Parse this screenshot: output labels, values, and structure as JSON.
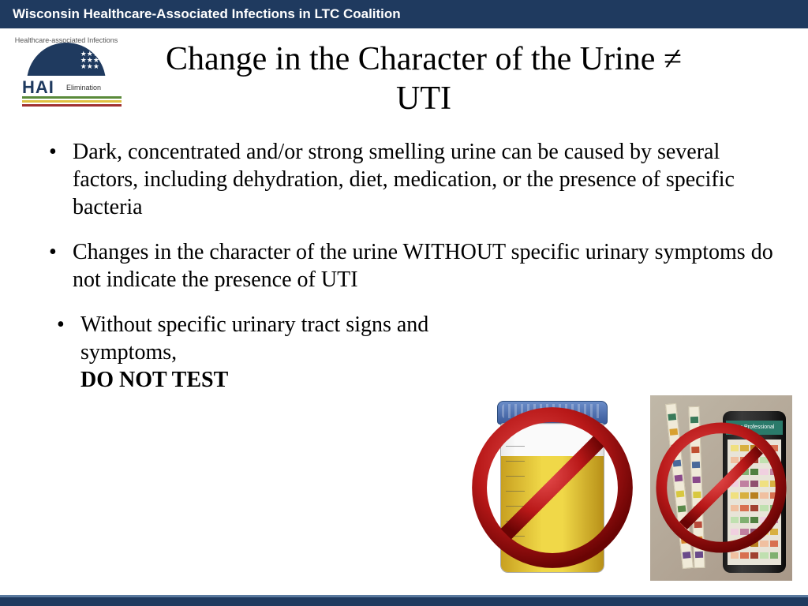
{
  "header": {
    "org": "Wisconsin Healthcare-Associated Infections in LTC Coalition"
  },
  "logo": {
    "arc_text": "Healthcare-associated Infections",
    "main": "HAI",
    "sub": "Elimination",
    "stripe_colors": [
      "#5a8a3a",
      "#e0c040",
      "#a03030"
    ]
  },
  "title": "Change in the Character of the Urine ≠ UTI",
  "bullets": [
    {
      "text": "Dark, concentrated and/or strong smelling urine can be caused by several factors, including dehydration, diet, medication, or the presence of specific bacteria"
    },
    {
      "text": "Changes in the character of the urine WITHOUT specific urinary symptoms do not indicate the presence of UTI"
    },
    {
      "indent": true,
      "text_pre": "Without specific urinary tract signs and symptoms, ",
      "text_bold": "DO NOT TEST"
    }
  ],
  "images": {
    "urine_cup": {
      "lid_color": "#3a5a9a",
      "liquid_color": "#e8c830",
      "no_symbol_size": 210,
      "no_symbol_color_outer": "#7a0808",
      "no_symbol_color_inner": "#d82828"
    },
    "test_strips": {
      "bg": "#b0a090",
      "bottle_label": "For Professional",
      "strip_pad_colors": [
        "#3a7a5a",
        "#d8a030",
        "#c05030",
        "#4a6a9a",
        "#8a4a8a",
        "#d8c840",
        "#5a8a4a",
        "#b84a3a",
        "#d88a30",
        "#6a4a8a"
      ],
      "chart_colors": [
        "#f0e080",
        "#d8b040",
        "#b88020",
        "#f0c0a0",
        "#d87050",
        "#a04030",
        "#c0e0b0",
        "#80b070",
        "#508040",
        "#f0d0e0",
        "#c080a0",
        "#905070"
      ],
      "no_symbol_size": 170
    }
  },
  "colors": {
    "header_bg": "#1f3a5f",
    "footer_border": "#5a7a9f",
    "text": "#000000"
  }
}
